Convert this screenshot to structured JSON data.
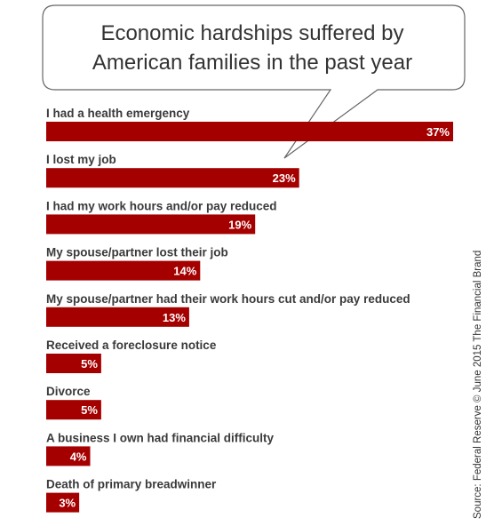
{
  "chart_data": {
    "type": "bar",
    "orientation": "horizontal",
    "title": "Economic hardships suffered by American families in the past year",
    "title_lines": [
      "Economic hardships suffered by",
      "American families in the past year"
    ],
    "categories": [
      "I had a health emergency",
      "I lost my job",
      "I had my work hours and/or pay reduced",
      "My spouse/partner lost their job",
      "My spouse/partner had their work hours cut and/or pay reduced",
      "Received a foreclosure notice",
      "Divorce",
      "A business I own had financial difficulty",
      "Death of primary breadwinner"
    ],
    "values": [
      37,
      23,
      19,
      14,
      13,
      5,
      5,
      4,
      3
    ],
    "value_labels": [
      "37%",
      "23%",
      "19%",
      "14%",
      "13%",
      "5%",
      "5%",
      "4%",
      "3%"
    ],
    "unit": "%",
    "xlim": [
      0,
      37
    ],
    "grid": false,
    "legend": "none",
    "bar_color": "#a50000",
    "source": "Source: Federal Reserve © June 2015 The Financial Brand"
  }
}
